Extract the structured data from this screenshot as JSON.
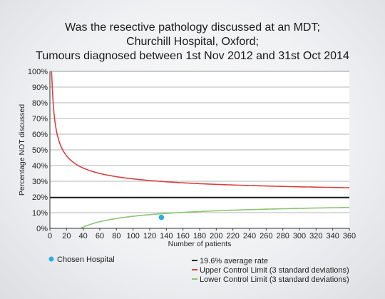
{
  "chart_data": {
    "type": "line",
    "title_lines": [
      "Was the resective pathology discussed at an MDT;",
      "Churchill Hospital, Oxford;",
      "Tumours diagnosed between 1st Nov 2012 and 31st Oct 2014"
    ],
    "xlabel": "Number of patients",
    "ylabel": "Percentage NOT discussed",
    "xlim": [
      0,
      360
    ],
    "ylim": [
      0,
      100
    ],
    "x_ticks": [
      0,
      20,
      40,
      60,
      80,
      100,
      120,
      140,
      160,
      180,
      200,
      220,
      240,
      260,
      280,
      300,
      320,
      340,
      360
    ],
    "y_ticks": [
      "0%",
      "10%",
      "20%",
      "30%",
      "40%",
      "50%",
      "60%",
      "70%",
      "80%",
      "90%",
      "100%"
    ],
    "grid": true,
    "average_rate": 0.196,
    "control_limit_sd": 3,
    "series": [
      {
        "name": "19.6% average rate",
        "color": "#222222",
        "kind": "average"
      },
      {
        "name": "Upper Control Limit (3 standard deviations)",
        "color": "#d94040",
        "kind": "upper"
      },
      {
        "name": "Lower Control Limit (3 standard deviations)",
        "color": "#8cc472",
        "kind": "lower"
      }
    ],
    "points": [
      {
        "name": "Chosen Hospital",
        "x": 134,
        "y": 7,
        "color": "#29aee6"
      }
    ]
  }
}
